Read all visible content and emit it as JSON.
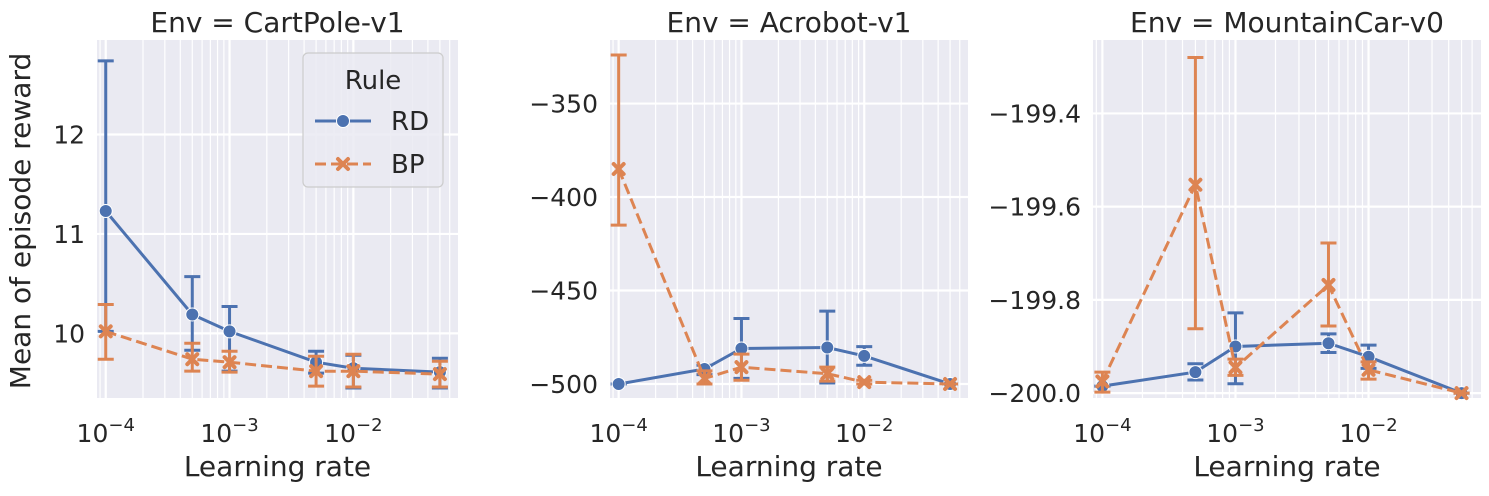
{
  "figure": {
    "ylabel": "Mean of episode reward",
    "legend": {
      "title": "Rule",
      "placement": "upper right of first panel",
      "entries": [
        {
          "label": "RD",
          "color": "#4c72b0",
          "marker": "circle",
          "linestyle": "solid"
        },
        {
          "label": "BP",
          "color": "#dd8452",
          "marker": "x",
          "linestyle": "dashed"
        }
      ]
    }
  },
  "chart_data": [
    {
      "type": "line",
      "title": "Env = CartPole-v1",
      "xlabel": "Learning rate",
      "ylabel": "Mean of episode reward",
      "xscale": "log",
      "xlim": [
        8.5e-05,
        0.07
      ],
      "ylim": [
        9.35,
        12.95
      ],
      "yticks": [
        10,
        11,
        12
      ],
      "ytick_labels": [
        "10",
        "11",
        "12"
      ],
      "xticks": [
        0.0001,
        0.001,
        0.01
      ],
      "xtick_labels": [
        "10^-4",
        "10^-3",
        "10^-2"
      ],
      "grid": true,
      "series": [
        {
          "name": "RD",
          "color": "#4c72b0",
          "marker": "circle",
          "dashed": false,
          "x": [
            0.0001,
            0.0005,
            0.001,
            0.005,
            0.01,
            0.05
          ],
          "y": [
            11.23,
            10.19,
            10.02,
            9.71,
            9.65,
            9.61
          ],
          "err_low": [
            10.02,
            9.83,
            9.62,
            9.6,
            9.45,
            9.45
          ],
          "err_high": [
            12.74,
            10.57,
            10.27,
            9.82,
            9.78,
            9.75
          ]
        },
        {
          "name": "BP",
          "color": "#dd8452",
          "marker": "x",
          "dashed": true,
          "x": [
            0.0001,
            0.0005,
            0.001,
            0.005,
            0.01,
            0.05
          ],
          "y": [
            10.02,
            9.74,
            9.71,
            9.62,
            9.62,
            9.59
          ],
          "err_low": [
            9.74,
            9.62,
            9.61,
            9.47,
            9.46,
            9.46
          ],
          "err_high": [
            10.29,
            9.9,
            9.82,
            9.77,
            9.79,
            9.72
          ]
        }
      ]
    },
    {
      "type": "line",
      "title": "Env = Acrobot-v1",
      "xlabel": "Learning rate",
      "ylabel": "",
      "xscale": "log",
      "xlim": [
        8.5e-05,
        0.07
      ],
      "ylim": [
        -507.5,
        -316
      ],
      "yticks": [
        -500,
        -450,
        -400,
        -350
      ],
      "ytick_labels": [
        "−500",
        "−450",
        "−400",
        "−350"
      ],
      "xticks": [
        0.0001,
        0.001,
        0.01
      ],
      "xtick_labels": [
        "10^-4",
        "10^-3",
        "10^-2"
      ],
      "grid": true,
      "series": [
        {
          "name": "RD",
          "color": "#4c72b0",
          "marker": "circle",
          "dashed": false,
          "x": [
            0.0001,
            0.0005,
            0.001,
            0.005,
            0.01,
            0.05
          ],
          "y": [
            -500,
            -492,
            -481,
            -480.5,
            -485,
            -500
          ],
          "err_low": [
            -500,
            -495,
            -497,
            -499.5,
            -490,
            -500
          ],
          "err_high": [
            -500,
            -490,
            -465,
            -461,
            -480,
            -500
          ]
        },
        {
          "name": "BP",
          "color": "#dd8452",
          "marker": "x",
          "dashed": true,
          "x": [
            0.0001,
            0.0005,
            0.001,
            0.005,
            0.01,
            0.05
          ],
          "y": [
            -385,
            -497,
            -491,
            -494.5,
            -499,
            -500
          ],
          "err_low": [
            -415,
            -500,
            -498,
            -498.5,
            -500,
            -500
          ],
          "err_high": [
            -324,
            -493,
            -484,
            -491,
            -498,
            -500
          ]
        }
      ]
    },
    {
      "type": "line",
      "title": "Env = MountainCar-v0",
      "xlabel": "Learning rate",
      "ylabel": "",
      "xscale": "log",
      "xlim": [
        8.5e-05,
        0.07
      ],
      "ylim": [
        -200.0105,
        -199.2425
      ],
      "yticks": [
        -200.0,
        -199.8,
        -199.6,
        -199.4
      ],
      "ytick_labels": [
        "−200.0",
        "−199.8",
        "−199.6",
        "−199.4"
      ],
      "xticks": [
        0.0001,
        0.001,
        0.01
      ],
      "xtick_labels": [
        "10^-4",
        "10^-3",
        "10^-2"
      ],
      "grid": true,
      "series": [
        {
          "name": "RD",
          "color": "#4c72b0",
          "marker": "circle",
          "dashed": false,
          "x": [
            0.0001,
            0.0005,
            0.001,
            0.005,
            0.01,
            0.05
          ],
          "y": [
            -199.985,
            -199.955,
            -199.9,
            -199.893,
            -199.922,
            -200.0
          ],
          "err_low": [
            -199.985,
            -199.972,
            -199.98,
            -199.913,
            -199.947,
            -200.0
          ],
          "err_high": [
            -199.985,
            -199.937,
            -199.828,
            -199.873,
            -199.897,
            -200.0
          ]
        },
        {
          "name": "BP",
          "color": "#dd8452",
          "marker": "x",
          "dashed": true,
          "x": [
            0.0001,
            0.0005,
            0.001,
            0.005,
            0.01,
            0.05
          ],
          "y": [
            -199.975,
            -199.553,
            -199.945,
            -199.768,
            -199.95,
            -200.0
          ],
          "err_low": [
            -199.998,
            -199.862,
            -199.962,
            -199.856,
            -199.97,
            -200.0
          ],
          "err_high": [
            -199.955,
            -199.28,
            -199.927,
            -199.678,
            -199.933,
            -200.0
          ]
        }
      ]
    }
  ]
}
